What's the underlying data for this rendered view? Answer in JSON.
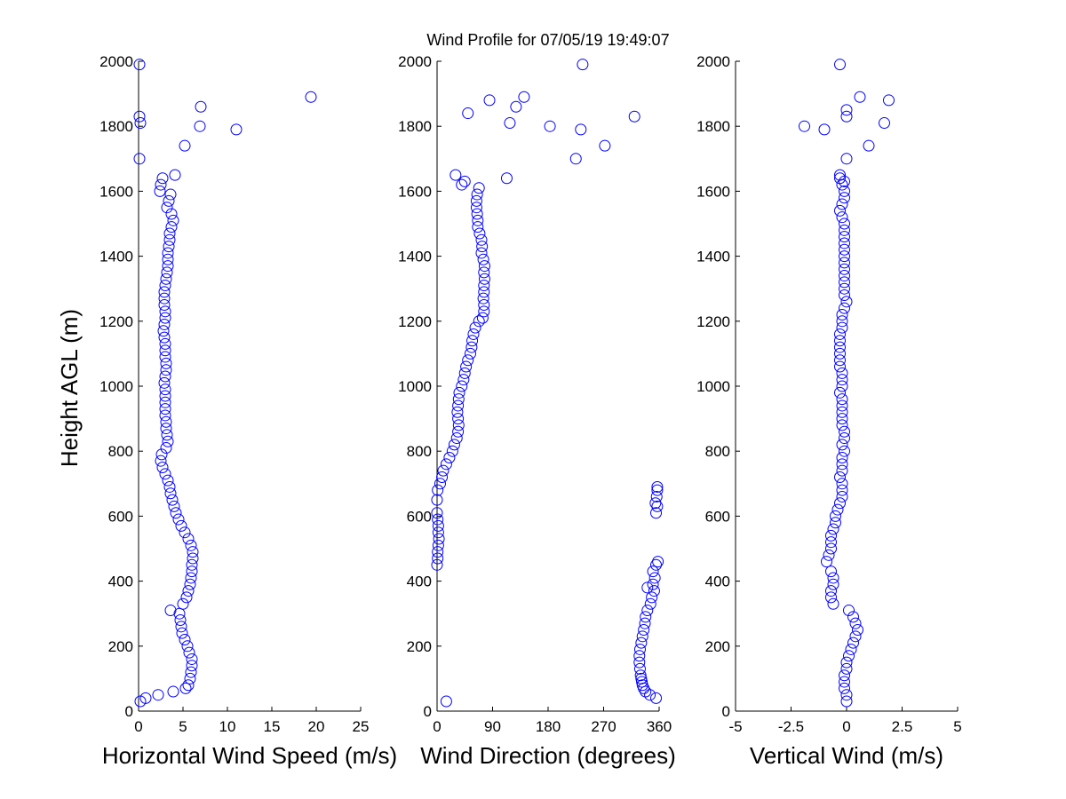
{
  "figure": {
    "title": "Wind Profile for  07/05/19 19:49:07",
    "ylabel": "Height AGL (m)",
    "marker_color": "#0000ff"
  },
  "chart_data": [
    {
      "type": "scatter",
      "xlabel": "Horizontal Wind Speed (m/s)",
      "ylabel": "Height AGL (m)",
      "xlim": [
        0,
        25
      ],
      "ylim": [
        0,
        2000
      ],
      "xticks": [
        0,
        5,
        10,
        15,
        20,
        25
      ],
      "xticklabels": [
        "0",
        "5",
        "10",
        "15",
        "20",
        "25"
      ],
      "yticks": [
        0,
        200,
        400,
        600,
        800,
        1000,
        1200,
        1400,
        1600,
        1800,
        2000
      ],
      "yticklabels": [
        "0",
        "200",
        "400",
        "600",
        "800",
        "1000",
        "1200",
        "1400",
        "1600",
        "1800",
        "2000"
      ],
      "grid": false,
      "points": [
        [
          0.2,
          30
        ],
        [
          0.8,
          40
        ],
        [
          2.2,
          50
        ],
        [
          3.9,
          60
        ],
        [
          5.3,
          70
        ],
        [
          5.6,
          80
        ],
        [
          5.8,
          100
        ],
        [
          5.9,
          120
        ],
        [
          6.0,
          140
        ],
        [
          6.0,
          160
        ],
        [
          5.7,
          180
        ],
        [
          5.5,
          200
        ],
        [
          5.2,
          220
        ],
        [
          4.9,
          240
        ],
        [
          4.8,
          260
        ],
        [
          4.7,
          280
        ],
        [
          4.6,
          300
        ],
        [
          3.6,
          310
        ],
        [
          5.0,
          330
        ],
        [
          5.4,
          350
        ],
        [
          5.6,
          370
        ],
        [
          5.8,
          390
        ],
        [
          5.9,
          410
        ],
        [
          6.0,
          430
        ],
        [
          6.0,
          450
        ],
        [
          6.1,
          470
        ],
        [
          6.1,
          490
        ],
        [
          5.9,
          510
        ],
        [
          5.6,
          530
        ],
        [
          5.2,
          550
        ],
        [
          4.8,
          570
        ],
        [
          4.5,
          590
        ],
        [
          4.2,
          610
        ],
        [
          4.0,
          630
        ],
        [
          3.8,
          650
        ],
        [
          3.6,
          670
        ],
        [
          3.5,
          690
        ],
        [
          3.3,
          710
        ],
        [
          3.0,
          730
        ],
        [
          2.7,
          750
        ],
        [
          2.5,
          770
        ],
        [
          2.6,
          790
        ],
        [
          3.1,
          810
        ],
        [
          3.3,
          830
        ],
        [
          3.2,
          850
        ],
        [
          3.1,
          870
        ],
        [
          3.1,
          890
        ],
        [
          3.0,
          910
        ],
        [
          3.0,
          930
        ],
        [
          3.0,
          950
        ],
        [
          3.0,
          970
        ],
        [
          3.0,
          990
        ],
        [
          2.9,
          1010
        ],
        [
          3.0,
          1030
        ],
        [
          3.1,
          1050
        ],
        [
          3.1,
          1070
        ],
        [
          3.0,
          1090
        ],
        [
          3.0,
          1110
        ],
        [
          3.0,
          1130
        ],
        [
          2.9,
          1150
        ],
        [
          2.8,
          1170
        ],
        [
          2.9,
          1190
        ],
        [
          3.0,
          1210
        ],
        [
          3.0,
          1230
        ],
        [
          2.9,
          1250
        ],
        [
          2.9,
          1270
        ],
        [
          2.9,
          1290
        ],
        [
          3.0,
          1310
        ],
        [
          3.1,
          1330
        ],
        [
          3.2,
          1350
        ],
        [
          3.3,
          1370
        ],
        [
          3.3,
          1390
        ],
        [
          3.3,
          1410
        ],
        [
          3.4,
          1430
        ],
        [
          3.5,
          1450
        ],
        [
          3.5,
          1470
        ],
        [
          3.7,
          1490
        ],
        [
          3.9,
          1510
        ],
        [
          3.7,
          1530
        ],
        [
          3.2,
          1550
        ],
        [
          3.4,
          1570
        ],
        [
          3.6,
          1590
        ],
        [
          2.4,
          1600
        ],
        [
          2.5,
          1620
        ],
        [
          2.7,
          1640
        ],
        [
          4.1,
          1650
        ],
        [
          0.1,
          1700
        ],
        [
          5.2,
          1740
        ],
        [
          0.1,
          1830
        ],
        [
          0.2,
          1810
        ],
        [
          6.9,
          1800
        ],
        [
          11.0,
          1790
        ],
        [
          7.0,
          1860
        ],
        [
          19.4,
          1890
        ],
        [
          0.1,
          1990
        ]
      ]
    },
    {
      "type": "scatter",
      "xlabel": "Wind Direction (degrees)",
      "ylabel": "",
      "xlim": [
        0,
        360
      ],
      "ylim": [
        0,
        2000
      ],
      "xticks": [
        0,
        90,
        180,
        270,
        360
      ],
      "xticklabels": [
        "0",
        "90",
        "180",
        "270",
        "360"
      ],
      "yticks": [
        0,
        200,
        400,
        600,
        800,
        1000,
        1200,
        1400,
        1600,
        1800,
        2000
      ],
      "yticklabels": [
        "0",
        "200",
        "400",
        "600",
        "800",
        "1000",
        "1200",
        "1400",
        "1600",
        "1800",
        "2000"
      ],
      "grid": false,
      "points": [
        [
          15,
          30
        ],
        [
          355,
          40
        ],
        [
          345,
          50
        ],
        [
          338,
          60
        ],
        [
          335,
          70
        ],
        [
          333,
          80
        ],
        [
          332,
          90
        ],
        [
          331,
          100
        ],
        [
          330,
          110
        ],
        [
          329,
          130
        ],
        [
          328,
          150
        ],
        [
          328,
          170
        ],
        [
          329,
          190
        ],
        [
          331,
          210
        ],
        [
          333,
          230
        ],
        [
          335,
          250
        ],
        [
          337,
          270
        ],
        [
          338,
          290
        ],
        [
          341,
          310
        ],
        [
          346,
          330
        ],
        [
          348,
          350
        ],
        [
          352,
          370
        ],
        [
          341,
          380
        ],
        [
          350,
          390
        ],
        [
          353,
          410
        ],
        [
          350,
          430
        ],
        [
          355,
          450
        ],
        [
          358,
          460
        ],
        [
          0,
          450
        ],
        [
          1,
          470
        ],
        [
          1,
          490
        ],
        [
          2,
          510
        ],
        [
          3,
          530
        ],
        [
          2,
          550
        ],
        [
          2,
          570
        ],
        [
          1,
          590
        ],
        [
          0,
          610
        ],
        [
          355,
          610
        ],
        [
          357,
          630
        ],
        [
          354,
          640
        ],
        [
          356,
          660
        ],
        [
          357,
          680
        ],
        [
          357,
          690
        ],
        [
          0,
          650
        ],
        [
          1,
          680
        ],
        [
          5,
          700
        ],
        [
          8,
          720
        ],
        [
          10,
          740
        ],
        [
          15,
          760
        ],
        [
          20,
          780
        ],
        [
          25,
          800
        ],
        [
          28,
          820
        ],
        [
          32,
          840
        ],
        [
          34,
          860
        ],
        [
          35,
          880
        ],
        [
          34,
          900
        ],
        [
          33,
          920
        ],
        [
          34,
          940
        ],
        [
          35,
          960
        ],
        [
          36,
          980
        ],
        [
          40,
          1000
        ],
        [
          43,
          1020
        ],
        [
          45,
          1040
        ],
        [
          47,
          1060
        ],
        [
          50,
          1080
        ],
        [
          54,
          1100
        ],
        [
          56,
          1120
        ],
        [
          57,
          1140
        ],
        [
          59,
          1160
        ],
        [
          62,
          1180
        ],
        [
          68,
          1200
        ],
        [
          74,
          1210
        ],
        [
          76,
          1230
        ],
        [
          76,
          1250
        ],
        [
          75,
          1270
        ],
        [
          76,
          1290
        ],
        [
          76,
          1310
        ],
        [
          77,
          1330
        ],
        [
          76,
          1350
        ],
        [
          77,
          1370
        ],
        [
          75,
          1390
        ],
        [
          72,
          1410
        ],
        [
          73,
          1430
        ],
        [
          72,
          1450
        ],
        [
          69,
          1470
        ],
        [
          66,
          1490
        ],
        [
          66,
          1510
        ],
        [
          65,
          1530
        ],
        [
          64,
          1550
        ],
        [
          64,
          1570
        ],
        [
          65,
          1590
        ],
        [
          68,
          1610
        ],
        [
          40,
          1620
        ],
        [
          45,
          1630
        ],
        [
          30,
          1650
        ],
        [
          113,
          1640
        ],
        [
          225,
          1700
        ],
        [
          272,
          1740
        ],
        [
          118,
          1810
        ],
        [
          183,
          1800
        ],
        [
          233,
          1790
        ],
        [
          50,
          1840
        ],
        [
          128,
          1860
        ],
        [
          141,
          1890
        ],
        [
          85,
          1880
        ],
        [
          320,
          1830
        ],
        [
          236,
          1990
        ]
      ]
    },
    {
      "type": "scatter",
      "xlabel": "Vertical Wind (m/s)",
      "ylabel": "",
      "xlim": [
        -5,
        5
      ],
      "ylim": [
        0,
        2000
      ],
      "xticks": [
        -5,
        -2.5,
        0,
        2.5,
        5
      ],
      "xticklabels": [
        "-5",
        "-2.5",
        "0",
        "2.5",
        "5"
      ],
      "yticks": [
        0,
        200,
        400,
        600,
        800,
        1000,
        1200,
        1400,
        1600,
        1800,
        2000
      ],
      "yticklabels": [
        "0",
        "200",
        "400",
        "600",
        "800",
        "1000",
        "1200",
        "1400",
        "1600",
        "1800",
        "2000"
      ],
      "grid": false,
      "points": [
        [
          0.0,
          30
        ],
        [
          0.0,
          50
        ],
        [
          -0.1,
          70
        ],
        [
          -0.1,
          90
        ],
        [
          -0.1,
          110
        ],
        [
          0.0,
          130
        ],
        [
          0.0,
          150
        ],
        [
          0.1,
          170
        ],
        [
          0.2,
          190
        ],
        [
          0.3,
          210
        ],
        [
          0.4,
          230
        ],
        [
          0.5,
          250
        ],
        [
          0.4,
          270
        ],
        [
          0.3,
          290
        ],
        [
          0.1,
          310
        ],
        [
          -0.6,
          330
        ],
        [
          -0.7,
          350
        ],
        [
          -0.7,
          370
        ],
        [
          -0.6,
          390
        ],
        [
          -0.6,
          410
        ],
        [
          -0.7,
          430
        ],
        [
          -0.9,
          460
        ],
        [
          -0.8,
          480
        ],
        [
          -0.7,
          500
        ],
        [
          -0.7,
          520
        ],
        [
          -0.7,
          540
        ],
        [
          -0.6,
          560
        ],
        [
          -0.5,
          580
        ],
        [
          -0.5,
          600
        ],
        [
          -0.4,
          620
        ],
        [
          -0.3,
          640
        ],
        [
          -0.2,
          660
        ],
        [
          -0.2,
          680
        ],
        [
          -0.2,
          700
        ],
        [
          -0.3,
          720
        ],
        [
          -0.2,
          740
        ],
        [
          -0.2,
          760
        ],
        [
          -0.2,
          780
        ],
        [
          -0.1,
          800
        ],
        [
          -0.2,
          820
        ],
        [
          -0.1,
          840
        ],
        [
          -0.1,
          860
        ],
        [
          -0.2,
          880
        ],
        [
          -0.2,
          900
        ],
        [
          -0.2,
          920
        ],
        [
          -0.2,
          940
        ],
        [
          -0.2,
          960
        ],
        [
          -0.3,
          980
        ],
        [
          -0.2,
          1000
        ],
        [
          -0.2,
          1020
        ],
        [
          -0.2,
          1040
        ],
        [
          -0.3,
          1060
        ],
        [
          -0.3,
          1080
        ],
        [
          -0.3,
          1100
        ],
        [
          -0.3,
          1120
        ],
        [
          -0.3,
          1140
        ],
        [
          -0.3,
          1160
        ],
        [
          -0.2,
          1180
        ],
        [
          -0.2,
          1200
        ],
        [
          -0.2,
          1220
        ],
        [
          -0.1,
          1240
        ],
        [
          0.0,
          1260
        ],
        [
          -0.1,
          1280
        ],
        [
          -0.1,
          1300
        ],
        [
          -0.1,
          1320
        ],
        [
          -0.1,
          1340
        ],
        [
          -0.1,
          1360
        ],
        [
          -0.1,
          1380
        ],
        [
          -0.1,
          1400
        ],
        [
          -0.1,
          1420
        ],
        [
          -0.1,
          1440
        ],
        [
          -0.1,
          1460
        ],
        [
          -0.1,
          1480
        ],
        [
          -0.1,
          1500
        ],
        [
          -0.2,
          1520
        ],
        [
          -0.3,
          1540
        ],
        [
          -0.2,
          1560
        ],
        [
          -0.1,
          1580
        ],
        [
          -0.1,
          1600
        ],
        [
          -0.2,
          1620
        ],
        [
          -0.3,
          1640
        ],
        [
          -0.1,
          1630
        ],
        [
          -0.3,
          1650
        ],
        [
          0.0,
          1700
        ],
        [
          -1.9,
          1800
        ],
        [
          -1.0,
          1790
        ],
        [
          0.0,
          1830
        ],
        [
          0.0,
          1850
        ],
        [
          1.0,
          1740
        ],
        [
          1.7,
          1810
        ],
        [
          0.6,
          1890
        ],
        [
          1.9,
          1880
        ],
        [
          -0.3,
          1990
        ]
      ]
    }
  ]
}
